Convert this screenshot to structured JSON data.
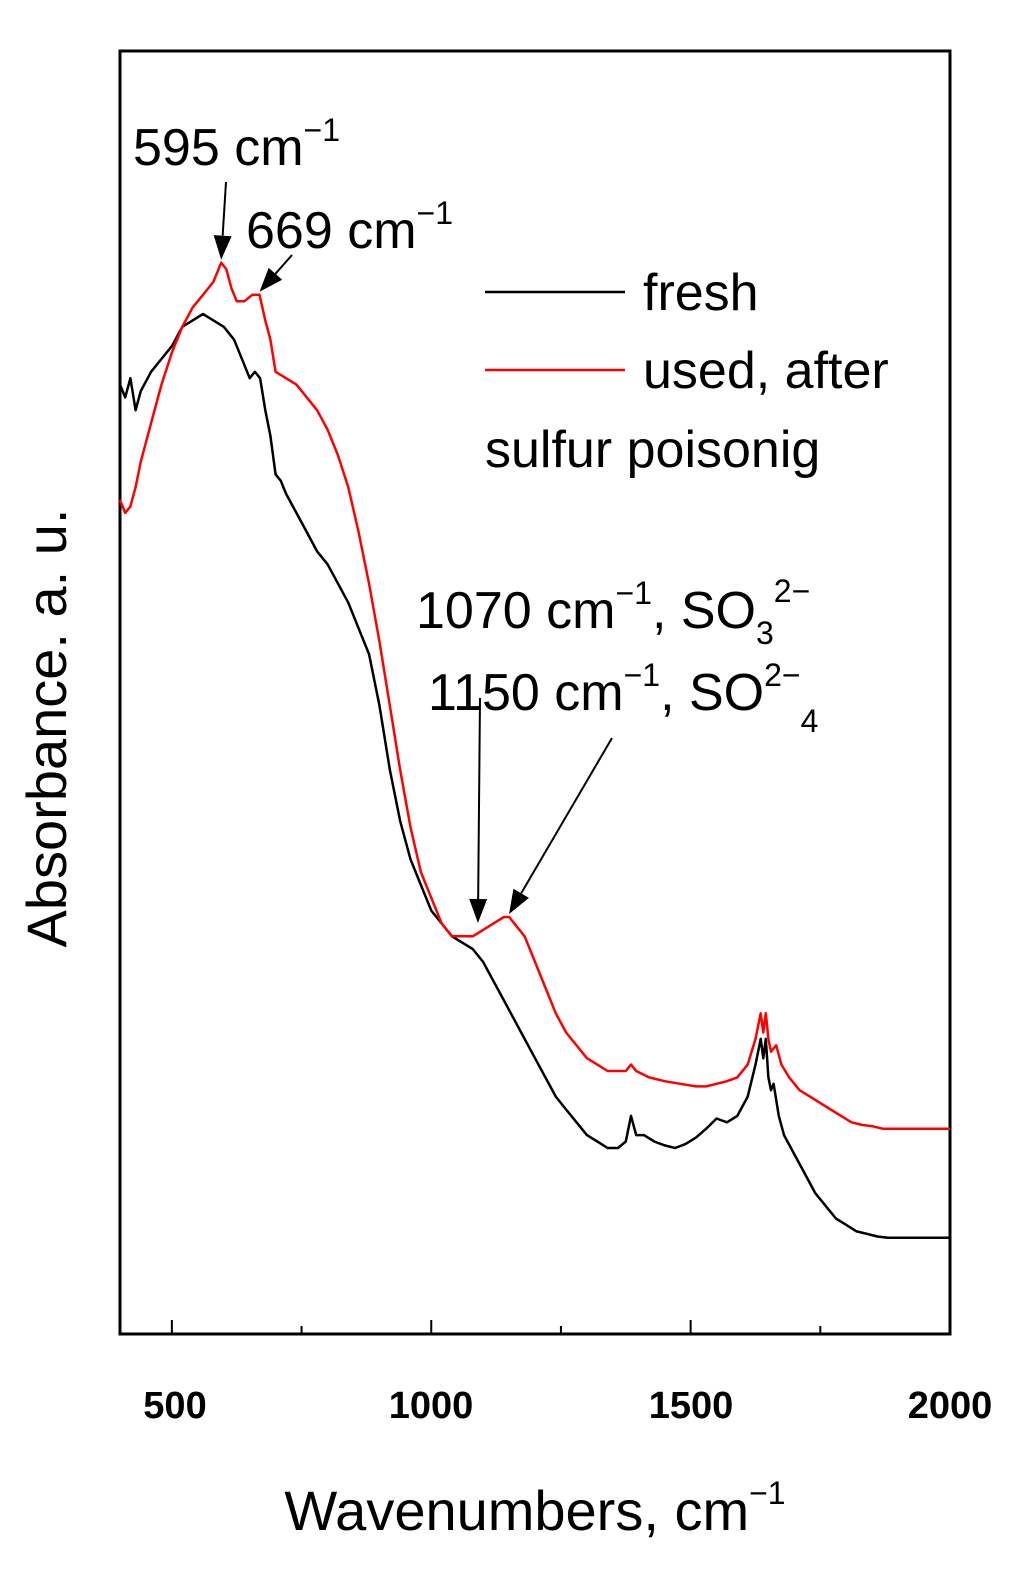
{
  "chart_data": {
    "type": "line",
    "title": "",
    "xlabel": "Wavenumbers, cm",
    "xlabel_sup": "−1",
    "ylabel": "Absorbance. a. u.",
    "xlim": [
      400,
      2000
    ],
    "ylim": [
      0,
      1
    ],
    "x_ticks": [
      500,
      1000,
      1500,
      2000
    ],
    "x_tick_labels": [
      "500",
      "1000",
      "1500",
      "2000"
    ],
    "grid": false,
    "legend_position": "top-right",
    "series": [
      {
        "name": "fresh",
        "color": "#000000",
        "points": [
          [
            400,
            0.74
          ],
          [
            410,
            0.73
          ],
          [
            420,
            0.745
          ],
          [
            430,
            0.72
          ],
          [
            440,
            0.735
          ],
          [
            460,
            0.75
          ],
          [
            480,
            0.76
          ],
          [
            500,
            0.77
          ],
          [
            520,
            0.785
          ],
          [
            540,
            0.79
          ],
          [
            560,
            0.795
          ],
          [
            580,
            0.79
          ],
          [
            600,
            0.785
          ],
          [
            620,
            0.775
          ],
          [
            640,
            0.755
          ],
          [
            650,
            0.745
          ],
          [
            660,
            0.75
          ],
          [
            670,
            0.745
          ],
          [
            680,
            0.72
          ],
          [
            690,
            0.7
          ],
          [
            700,
            0.67
          ],
          [
            710,
            0.665
          ],
          [
            720,
            0.655
          ],
          [
            740,
            0.64
          ],
          [
            760,
            0.625
          ],
          [
            780,
            0.61
          ],
          [
            800,
            0.6
          ],
          [
            820,
            0.585
          ],
          [
            840,
            0.57
          ],
          [
            860,
            0.55
          ],
          [
            880,
            0.53
          ],
          [
            900,
            0.49
          ],
          [
            920,
            0.44
          ],
          [
            940,
            0.4
          ],
          [
            960,
            0.37
          ],
          [
            980,
            0.35
          ],
          [
            1000,
            0.33
          ],
          [
            1020,
            0.32
          ],
          [
            1040,
            0.31
          ],
          [
            1060,
            0.305
          ],
          [
            1080,
            0.3
          ],
          [
            1100,
            0.29
          ],
          [
            1120,
            0.275
          ],
          [
            1140,
            0.26
          ],
          [
            1160,
            0.245
          ],
          [
            1180,
            0.23
          ],
          [
            1200,
            0.215
          ],
          [
            1220,
            0.2
          ],
          [
            1240,
            0.185
          ],
          [
            1260,
            0.175
          ],
          [
            1280,
            0.165
          ],
          [
            1300,
            0.155
          ],
          [
            1320,
            0.15
          ],
          [
            1340,
            0.145
          ],
          [
            1360,
            0.145
          ],
          [
            1375,
            0.15
          ],
          [
            1385,
            0.17
          ],
          [
            1395,
            0.155
          ],
          [
            1410,
            0.155
          ],
          [
            1430,
            0.15
          ],
          [
            1450,
            0.147
          ],
          [
            1470,
            0.145
          ],
          [
            1490,
            0.148
          ],
          [
            1510,
            0.153
          ],
          [
            1530,
            0.16
          ],
          [
            1550,
            0.168
          ],
          [
            1570,
            0.165
          ],
          [
            1590,
            0.17
          ],
          [
            1610,
            0.185
          ],
          [
            1625,
            0.21
          ],
          [
            1635,
            0.23
          ],
          [
            1640,
            0.215
          ],
          [
            1645,
            0.23
          ],
          [
            1650,
            0.2
          ],
          [
            1655,
            0.19
          ],
          [
            1660,
            0.195
          ],
          [
            1670,
            0.17
          ],
          [
            1680,
            0.155
          ],
          [
            1700,
            0.14
          ],
          [
            1720,
            0.125
          ],
          [
            1740,
            0.11
          ],
          [
            1760,
            0.1
          ],
          [
            1780,
            0.09
          ],
          [
            1800,
            0.085
          ],
          [
            1820,
            0.08
          ],
          [
            1840,
            0.078
          ],
          [
            1860,
            0.076
          ],
          [
            1880,
            0.075
          ],
          [
            1900,
            0.075
          ],
          [
            1920,
            0.075
          ],
          [
            1940,
            0.075
          ],
          [
            1960,
            0.075
          ],
          [
            1980,
            0.075
          ],
          [
            2000,
            0.075
          ]
        ]
      },
      {
        "name": "used, after sulfur poisonig",
        "color": "#ff0000",
        "points": [
          [
            400,
            0.65
          ],
          [
            410,
            0.64
          ],
          [
            420,
            0.645
          ],
          [
            430,
            0.66
          ],
          [
            440,
            0.68
          ],
          [
            460,
            0.71
          ],
          [
            480,
            0.74
          ],
          [
            500,
            0.765
          ],
          [
            520,
            0.785
          ],
          [
            540,
            0.8
          ],
          [
            560,
            0.81
          ],
          [
            580,
            0.82
          ],
          [
            595,
            0.835
          ],
          [
            605,
            0.83
          ],
          [
            615,
            0.815
          ],
          [
            625,
            0.805
          ],
          [
            640,
            0.805
          ],
          [
            655,
            0.81
          ],
          [
            669,
            0.81
          ],
          [
            680,
            0.79
          ],
          [
            690,
            0.775
          ],
          [
            700,
            0.75
          ],
          [
            720,
            0.745
          ],
          [
            740,
            0.74
          ],
          [
            760,
            0.73
          ],
          [
            780,
            0.72
          ],
          [
            800,
            0.705
          ],
          [
            820,
            0.685
          ],
          [
            840,
            0.66
          ],
          [
            860,
            0.625
          ],
          [
            880,
            0.585
          ],
          [
            900,
            0.54
          ],
          [
            920,
            0.49
          ],
          [
            940,
            0.44
          ],
          [
            960,
            0.395
          ],
          [
            980,
            0.36
          ],
          [
            1000,
            0.34
          ],
          [
            1020,
            0.32
          ],
          [
            1040,
            0.31
          ],
          [
            1060,
            0.31
          ],
          [
            1080,
            0.31
          ],
          [
            1100,
            0.315
          ],
          [
            1120,
            0.32
          ],
          [
            1140,
            0.325
          ],
          [
            1150,
            0.325
          ],
          [
            1160,
            0.32
          ],
          [
            1180,
            0.31
          ],
          [
            1200,
            0.29
          ],
          [
            1220,
            0.27
          ],
          [
            1240,
            0.25
          ],
          [
            1260,
            0.235
          ],
          [
            1280,
            0.225
          ],
          [
            1300,
            0.215
          ],
          [
            1320,
            0.21
          ],
          [
            1340,
            0.205
          ],
          [
            1360,
            0.205
          ],
          [
            1375,
            0.205
          ],
          [
            1385,
            0.21
          ],
          [
            1395,
            0.205
          ],
          [
            1420,
            0.2
          ],
          [
            1450,
            0.197
          ],
          [
            1480,
            0.195
          ],
          [
            1510,
            0.193
          ],
          [
            1530,
            0.193
          ],
          [
            1550,
            0.195
          ],
          [
            1570,
            0.197
          ],
          [
            1590,
            0.2
          ],
          [
            1610,
            0.21
          ],
          [
            1625,
            0.23
          ],
          [
            1635,
            0.25
          ],
          [
            1640,
            0.235
          ],
          [
            1645,
            0.25
          ],
          [
            1650,
            0.23
          ],
          [
            1655,
            0.22
          ],
          [
            1665,
            0.225
          ],
          [
            1675,
            0.21
          ],
          [
            1690,
            0.2
          ],
          [
            1710,
            0.19
          ],
          [
            1730,
            0.185
          ],
          [
            1750,
            0.18
          ],
          [
            1770,
            0.175
          ],
          [
            1790,
            0.17
          ],
          [
            1810,
            0.165
          ],
          [
            1830,
            0.163
          ],
          [
            1850,
            0.162
          ],
          [
            1870,
            0.16
          ],
          [
            1890,
            0.16
          ],
          [
            1910,
            0.16
          ],
          [
            1930,
            0.16
          ],
          [
            1950,
            0.16
          ],
          [
            1970,
            0.16
          ],
          [
            2000,
            0.16
          ]
        ]
      }
    ],
    "legend": [
      {
        "label": "fresh",
        "color": "#000000"
      },
      {
        "label": "used, after",
        "color": "#ff0000"
      },
      {
        "label": "sulfur poisonig",
        "color": ""
      }
    ],
    "annotations": [
      {
        "id": "a595",
        "main": "595 cm",
        "sup": "−1",
        "tail": "",
        "sub": "",
        "sup2": "",
        "target": [
          595,
          0.835
        ]
      },
      {
        "id": "a669",
        "main": "669 cm",
        "sup": "−1",
        "tail": "",
        "sub": "",
        "sup2": "",
        "target": [
          669,
          0.81
        ]
      },
      {
        "id": "a1070",
        "main": "1070 cm",
        "sup": "−1",
        "tail": ", SO",
        "sub": "3",
        "sup2": "2−",
        "target": [
          1090,
          0.318
        ]
      },
      {
        "id": "a1150",
        "main": "1150 cm",
        "sup": "−1",
        "tail": ", SO",
        "sub": "4",
        "sup2": "2−",
        "target": [
          1150,
          0.325
        ]
      }
    ]
  }
}
